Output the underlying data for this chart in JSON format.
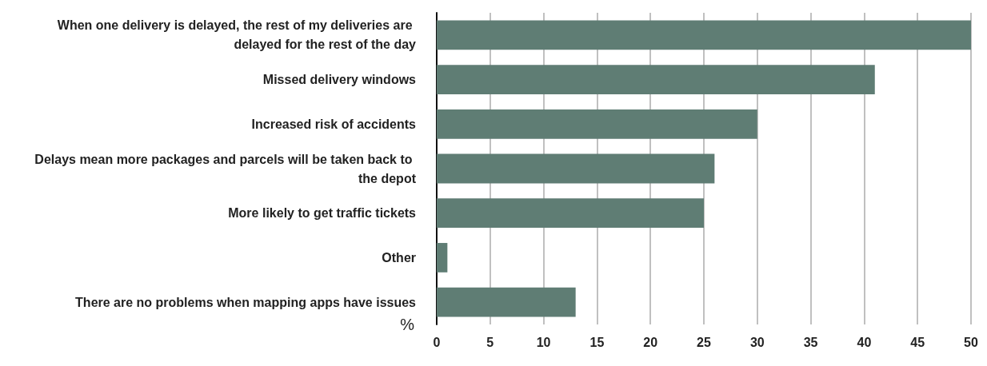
{
  "chart_data": {
    "type": "bar",
    "orientation": "horizontal",
    "xlabel": "%",
    "categories": [
      "When one delivery is delayed, the rest of my deliveries are delayed for the rest of the day",
      "Missed delivery windows",
      "Increased risk of accidents",
      "Delays mean more packages and parcels will be taken back to the depot",
      "More likely to get traffic tickets",
      "Other",
      "There are no problems when mapping apps have issues"
    ],
    "values": [
      50,
      41,
      30,
      26,
      25,
      1,
      13
    ],
    "color": "#5f7d74",
    "xlim": [
      0,
      50
    ],
    "xticks": [
      0,
      5,
      10,
      15,
      20,
      25,
      30,
      35,
      40,
      45,
      50
    ],
    "grid": "x"
  }
}
